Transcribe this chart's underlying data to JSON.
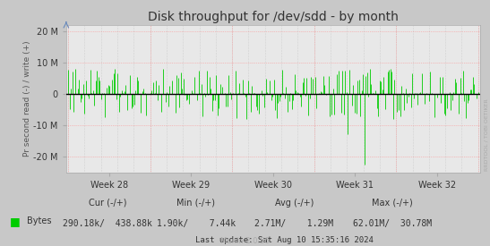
{
  "title": "Disk throughput for /dev/sdd - by month",
  "ylabel": "Pr second read (-) / write (+)",
  "xlabel_ticks": [
    "Week 28",
    "Week 29",
    "Week 30",
    "Week 31",
    "Week 32"
  ],
  "ylim": [
    -25000000,
    22000000
  ],
  "yticks": [
    -20000000,
    -10000000,
    0,
    10000000,
    20000000
  ],
  "ytick_labels": [
    "-20 M",
    "-10 M",
    "0",
    "10 M",
    "20 M"
  ],
  "bg_color": "#c8c8c8",
  "plot_bg_color": "#e8e8e8",
  "line_color": "#00cc00",
  "zero_line_color": "#000000",
  "legend_label": "Bytes",
  "legend_color": "#00cc00",
  "footer_cur_label": "Cur (-/+)",
  "footer_cur": "290.18k/  438.88k",
  "footer_min_label": "Min (-/+)",
  "footer_min": "1.90k/    7.44k",
  "footer_avg_label": "Avg (-/+)",
  "footer_avg": "2.71M/    1.29M",
  "footer_max_label": "Max (-/+)",
  "footer_max": "62.01M/  30.78M",
  "footer_update": "Last update: Sat Aug 10 15:35:16 2024",
  "munin_label": "Munin 2.0.56",
  "rrdtool_label": "RRDTOOL / TOBI OETIKER",
  "n_points": 300,
  "seed": 42
}
